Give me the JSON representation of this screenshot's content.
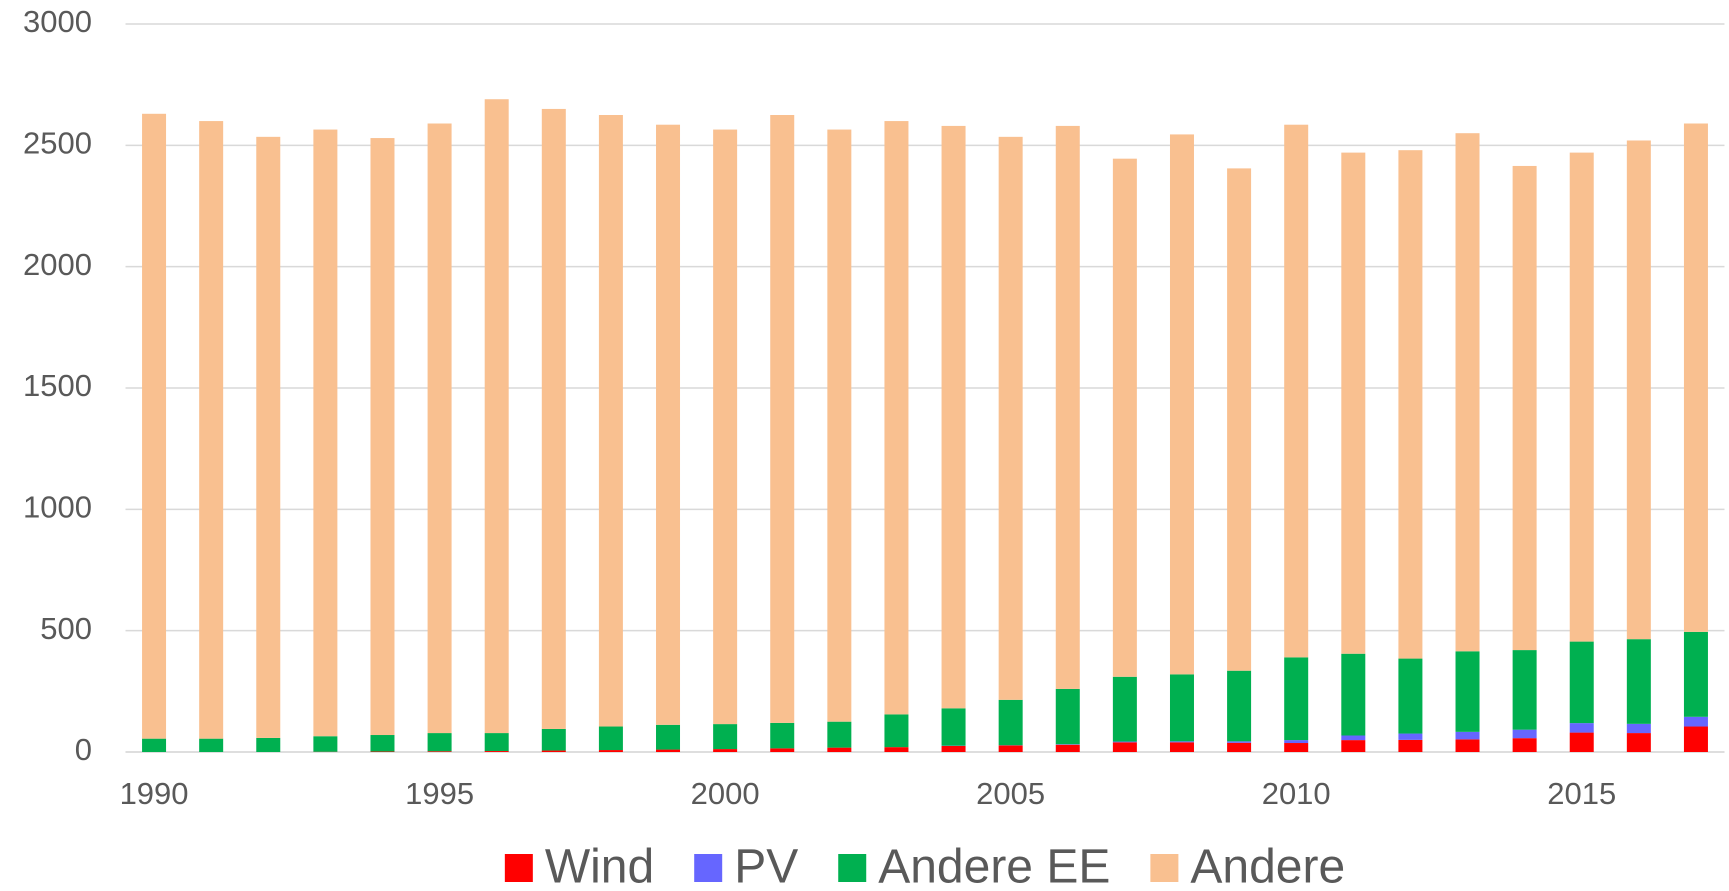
{
  "chart_data": {
    "type": "stacked_bar",
    "categories": [
      "1990",
      null,
      null,
      null,
      null,
      "1995",
      null,
      null,
      null,
      null,
      "2000",
      null,
      null,
      null,
      null,
      "2005",
      null,
      null,
      null,
      null,
      "2010",
      null,
      null,
      null,
      null,
      "2015",
      null,
      null
    ],
    "series": [
      {
        "name": "Wind",
        "color": "#ff0000",
        "values": [
          0,
          0,
          0,
          1,
          2,
          3,
          4,
          6,
          8,
          10,
          12,
          15,
          18,
          20,
          25,
          27,
          30,
          40,
          40,
          38,
          37,
          49,
          50,
          52,
          57,
          80,
          78,
          105
        ]
      },
      {
        "name": "PV",
        "color": "#6666ff",
        "values": [
          0,
          0,
          0,
          0,
          0,
          0,
          0,
          0,
          0,
          0,
          0,
          0,
          0,
          0,
          1,
          1,
          2,
          3,
          4,
          6,
          12,
          19,
          26,
          31,
          35,
          39,
          38,
          40
        ]
      },
      {
        "name": "Andere EE",
        "color": "#00b050",
        "values": [
          55,
          55,
          58,
          64,
          68,
          75,
          74,
          89,
          97,
          102,
          103,
          105,
          107,
          135,
          154,
          187,
          228,
          267,
          276,
          291,
          341,
          337,
          309,
          332,
          328,
          336,
          349,
          350
        ]
      },
      {
        "name": "Andere",
        "color": "#f9c090",
        "values": [
          2575,
          2545,
          2477,
          2500,
          2460,
          2512,
          2612,
          2555,
          2520,
          2473,
          2450,
          2505,
          2440,
          2445,
          2400,
          2320,
          2320,
          2135,
          2225,
          2070,
          2195,
          2065,
          2095,
          2135,
          1995,
          2015,
          2055,
          2095
        ]
      }
    ],
    "ylim": [
      0,
      3000
    ],
    "yticks": [
      0,
      500,
      1000,
      1500,
      2000,
      2500,
      3000
    ],
    "grid": true,
    "legend": "bottom"
  }
}
